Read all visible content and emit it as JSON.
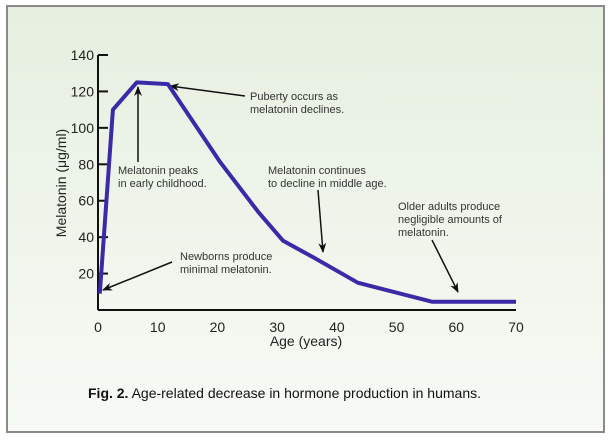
{
  "chart_data": {
    "type": "line",
    "title": "",
    "xlabel": "Age (years)",
    "ylabel": "Melatonin (μg/ml)",
    "xlim": [
      0,
      70
    ],
    "ylim": [
      0,
      140
    ],
    "xticks": [
      0,
      10,
      20,
      30,
      40,
      50,
      60,
      70
    ],
    "yticks": [
      20,
      40,
      60,
      80,
      100,
      120,
      140
    ],
    "grid": false,
    "series": [
      {
        "name": "Melatonin",
        "color": "#3a2aa8",
        "x": [
          0.3,
          2.5,
          6.5,
          11.7,
          20.5,
          26.8,
          31,
          36,
          43.5,
          56,
          70
        ],
        "y": [
          9,
          110,
          125,
          124,
          81,
          54,
          38,
          29,
          15,
          4.5,
          4.5
        ]
      }
    ],
    "annotations": [
      {
        "lines": [
          "Puberty occurs as",
          "melatonin declines."
        ],
        "points_to": [
          11.7,
          124
        ]
      },
      {
        "lines": [
          "Melatonin peaks",
          "in early childhood."
        ],
        "points_to": [
          6.5,
          125
        ]
      },
      {
        "lines": [
          "Melatonin continues",
          "to decline in middle age."
        ],
        "points_to": [
          36,
          30
        ]
      },
      {
        "lines": [
          "Older adults produce",
          "negligible amounts of",
          "melatonin."
        ],
        "points_to": [
          60,
          10
        ]
      },
      {
        "lines": [
          "Newborns produce",
          "minimal melatonin."
        ],
        "points_to": [
          0.8,
          11
        ]
      }
    ],
    "caption": {
      "label": "Fig. 2.",
      "text": " Age-related decrease in hormone production in humans."
    }
  }
}
